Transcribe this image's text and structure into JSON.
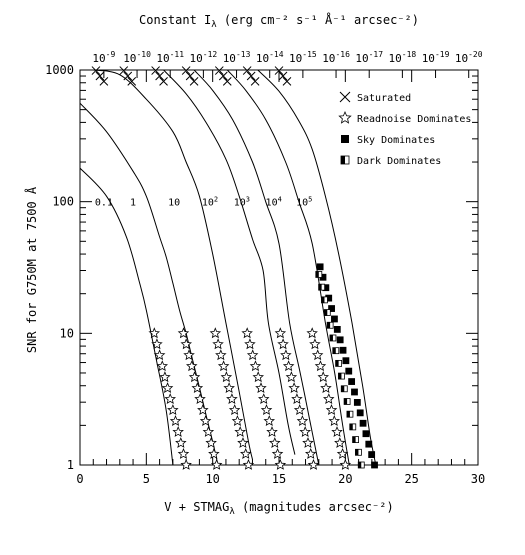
{
  "chart_data": {
    "type": "line",
    "title_top_axis": "Constant Iλ (erg cm⁻² s⁻¹ Å⁻¹ arcsec⁻²)",
    "xlabel": "V + STMAGλ (magnitudes arcsec⁻²)",
    "ylabel": "SNR for G750M at 7500 Å",
    "xlim": [
      0,
      30
    ],
    "ylim": [
      1,
      1000
    ],
    "yscale": "log",
    "x_ticks": [
      "0",
      "5",
      "10",
      "15",
      "20",
      "25",
      "30"
    ],
    "y_ticks": [
      "1",
      "10",
      "100",
      "1000"
    ],
    "top_ticks": [
      {
        "x": 1.8,
        "base": "10",
        "exp": "-9"
      },
      {
        "x": 4.3,
        "base": "10",
        "exp": "-10"
      },
      {
        "x": 6.8,
        "base": "10",
        "exp": "-11"
      },
      {
        "x": 9.3,
        "base": "10",
        "exp": "-12"
      },
      {
        "x": 11.8,
        "base": "10",
        "exp": "-13"
      },
      {
        "x": 14.3,
        "base": "10",
        "exp": "-14"
      },
      {
        "x": 16.8,
        "base": "10",
        "exp": "-15"
      },
      {
        "x": 19.3,
        "base": "10",
        "exp": "-16"
      },
      {
        "x": 21.8,
        "base": "10",
        "exp": "-17"
      },
      {
        "x": 24.3,
        "base": "10",
        "exp": "-18"
      },
      {
        "x": 26.8,
        "base": "10",
        "exp": "-19"
      },
      {
        "x": 29.3,
        "base": "10",
        "exp": "-20"
      }
    ],
    "series": [
      {
        "name": "0.1",
        "label_pos": [
          1.8,
          100
        ],
        "points": [
          [
            0,
            180
          ],
          [
            2,
            110
          ],
          [
            3.5,
            54
          ],
          [
            4.5,
            24
          ],
          [
            5,
            15
          ],
          [
            5.8,
            6
          ],
          [
            6.5,
            2.6
          ],
          [
            7,
            1
          ]
        ]
      },
      {
        "name": "1",
        "label_pos": [
          4.0,
          100
        ],
        "points": [
          [
            0,
            560
          ],
          [
            2,
            340
          ],
          [
            4,
            170
          ],
          [
            5,
            110
          ],
          [
            6,
            54
          ],
          [
            6.5,
            38
          ],
          [
            7,
            24
          ],
          [
            7.5,
            15
          ],
          [
            8,
            10
          ],
          [
            8.5,
            6.2
          ],
          [
            9,
            3.9
          ],
          [
            9.5,
            2.4
          ],
          [
            10,
            1.5
          ],
          [
            10.4,
            1
          ]
        ]
      },
      {
        "name": "10",
        "label_pos": [
          7.1,
          100
        ],
        "points": [
          [
            1,
            1000
          ],
          [
            3,
            920
          ],
          [
            5,
            600
          ],
          [
            7,
            340
          ],
          [
            8,
            200
          ],
          [
            9,
            110
          ],
          [
            10,
            40
          ],
          [
            11,
            12
          ],
          [
            12,
            3.6
          ],
          [
            12.7,
            1.5
          ],
          [
            13,
            1.1
          ]
        ]
      },
      {
        "name": "10^2",
        "label_pos": [
          9.8,
          100
        ],
        "points": [
          [
            6.3,
            1000
          ],
          [
            8,
            660
          ],
          [
            9.5,
            400
          ],
          [
            11,
            210
          ],
          [
            12,
            110
          ],
          [
            13,
            52
          ],
          [
            13.8,
            30
          ],
          [
            14.2,
            12
          ],
          [
            15,
            5
          ],
          [
            15.7,
            2
          ],
          [
            16.2,
            1.2
          ]
        ]
      },
      {
        "name": "10^3",
        "label_pos": [
          12.2,
          100
        ],
        "points": [
          [
            8.6,
            1000
          ],
          [
            10,
            700
          ],
          [
            11.5,
            420
          ],
          [
            13,
            200
          ],
          [
            14,
            100
          ],
          [
            15,
            48
          ],
          [
            15.8,
            12
          ],
          [
            16.6,
            5
          ],
          [
            17.4,
            2
          ],
          [
            18,
            1
          ]
        ]
      },
      {
        "name": "10^4",
        "label_pos": [
          14.6,
          100
        ],
        "points": [
          [
            11.1,
            1000
          ],
          [
            12.5,
            700
          ],
          [
            14,
            420
          ],
          [
            15.5,
            200
          ],
          [
            16.5,
            100
          ],
          [
            17.5,
            48
          ],
          [
            18.5,
            12
          ],
          [
            19.2,
            5
          ],
          [
            19.8,
            2
          ],
          [
            20.3,
            1
          ]
        ]
      },
      {
        "name": "10^5",
        "label_pos": [
          16.9,
          100
        ],
        "points": [
          [
            13.4,
            1000
          ],
          [
            15,
            690
          ],
          [
            16.5,
            410
          ],
          [
            17.5,
            250
          ],
          [
            18.5,
            110
          ],
          [
            19.5,
            40
          ],
          [
            20.5,
            12
          ],
          [
            21.3,
            4
          ],
          [
            21.9,
            1.6
          ],
          [
            22.3,
            1
          ]
        ]
      }
    ],
    "markers": {
      "saturated": [
        {
          "series": "0.1",
          "points": [
            [
              1.2,
              990
            ],
            [
              1.5,
              900
            ],
            [
              1.8,
              820
            ]
          ]
        },
        {
          "series": "1",
          "points": [
            [
              3.3,
              990
            ],
            [
              3.6,
              900
            ],
            [
              3.9,
              820
            ]
          ]
        },
        {
          "series": "10",
          "points": [
            [
              5.7,
              990
            ],
            [
              6.0,
              900
            ],
            [
              6.3,
              820
            ]
          ]
        },
        {
          "series": "10^2",
          "points": [
            [
              8.0,
              990
            ],
            [
              8.3,
              900
            ],
            [
              8.6,
              820
            ]
          ]
        },
        {
          "series": "10^3",
          "points": [
            [
              10.5,
              990
            ],
            [
              10.8,
              900
            ],
            [
              11.1,
              820
            ]
          ]
        },
        {
          "series": "10^4",
          "points": [
            [
              12.6,
              990
            ],
            [
              12.9,
              900
            ],
            [
              13.2,
              820
            ]
          ]
        },
        {
          "series": "10^5",
          "points": [
            [
              15.0,
              990
            ],
            [
              15.3,
              900
            ],
            [
              15.6,
              820
            ]
          ]
        }
      ],
      "readnoise": [
        {
          "series": "1",
          "start": [
            5.6,
            10
          ],
          "end": [
            8.0,
            1
          ]
        },
        {
          "series": "10",
          "start": [
            7.8,
            10
          ],
          "end": [
            10.3,
            1
          ]
        },
        {
          "series": "10^2",
          "start": [
            10.2,
            10
          ],
          "end": [
            12.7,
            1
          ]
        },
        {
          "series": "10^3",
          "start": [
            12.6,
            10
          ],
          "end": [
            15.1,
            1
          ]
        },
        {
          "series": "10^4",
          "start": [
            15.1,
            10
          ],
          "end": [
            17.6,
            1
          ]
        },
        {
          "series": "10^5",
          "start": [
            17.5,
            10
          ],
          "end": [
            20.0,
            1
          ]
        }
      ],
      "sky": {
        "series": "10^5",
        "start": [
          18.1,
          32
        ],
        "end": [
          22.2,
          1
        ]
      },
      "dark": {
        "series": "10^5",
        "start": [
          18.0,
          28
        ],
        "end": [
          21.2,
          1
        ]
      }
    },
    "legend": {
      "position": "top-right",
      "entries": [
        "Saturated",
        "Readnoise Dominates",
        "Sky Dominates",
        "Dark Dominates"
      ]
    }
  }
}
